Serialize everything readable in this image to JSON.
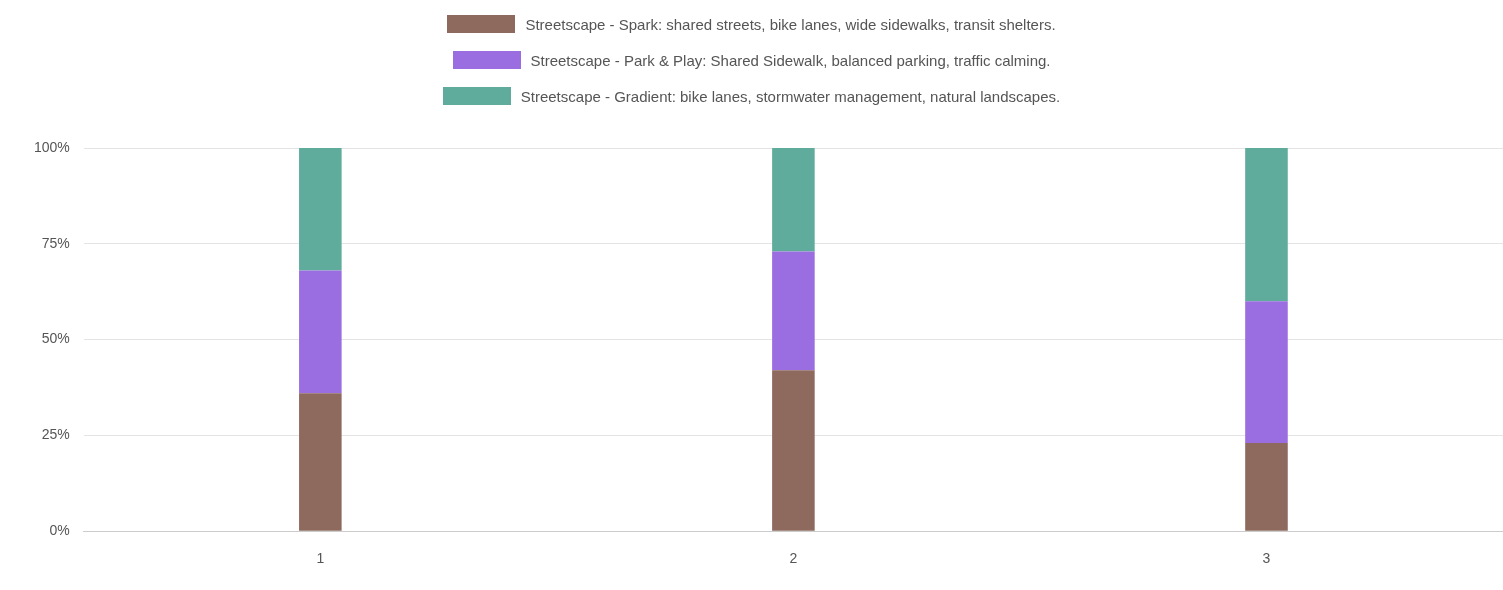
{
  "chart_data": {
    "type": "bar",
    "stacked": true,
    "categories": [
      "1",
      "2",
      "3"
    ],
    "series": [
      {
        "name": "Streetscape - Spark: shared streets, bike lanes, wide sidewalks, transit shelters.",
        "color": "#8e6a5e",
        "values": [
          36,
          42,
          23
        ]
      },
      {
        "name": "Streetscape - Park & Play: Shared Sidewalk, balanced parking, traffic calming.",
        "color": "#9a6ee0",
        "values": [
          32,
          31,
          37
        ]
      },
      {
        "name": "Streetscape - Gradient: bike lanes, stormwater management, natural landscapes.",
        "color": "#5fac9c",
        "values": [
          32,
          27,
          40
        ]
      }
    ],
    "ylim": [
      0,
      100
    ],
    "yticks": [
      {
        "value": 0,
        "label": "0%"
      },
      {
        "value": 25,
        "label": "25%"
      },
      {
        "value": 50,
        "label": "50%"
      },
      {
        "value": 75,
        "label": "75%"
      },
      {
        "value": 100,
        "label": "100%"
      }
    ],
    "grid": "y",
    "legend": "top"
  }
}
